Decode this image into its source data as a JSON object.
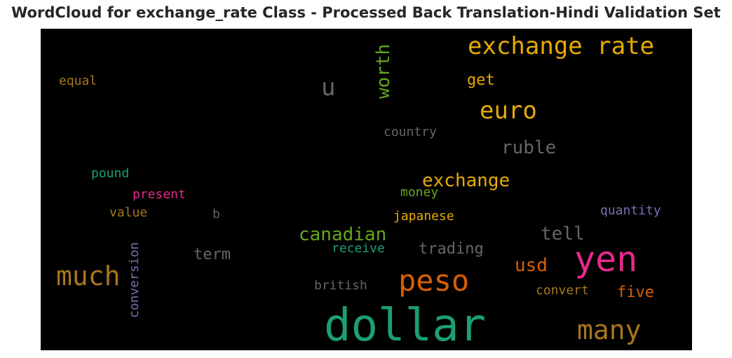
{
  "title": "WordCloud for exchange_rate Class - Processed Back Translation-Hindi Validation Set",
  "colors": {
    "background": "#000000",
    "teal": "#1b9e77",
    "orange": "#d95f02",
    "purple": "#7570b3",
    "pink": "#e7298a",
    "green": "#66a61e",
    "yellow": "#e6ab02",
    "brown": "#a6761d",
    "gray": "#666666"
  },
  "words": [
    {
      "text": "exchange rate",
      "color": "#e6ab02"
    },
    {
      "text": "u",
      "color": "#666666"
    },
    {
      "text": "worth",
      "color": "#66a61e"
    },
    {
      "text": "get",
      "color": "#e6ab02"
    },
    {
      "text": "equal",
      "color": "#a6761d"
    },
    {
      "text": "euro",
      "color": "#e6ab02"
    },
    {
      "text": "country",
      "color": "#666666"
    },
    {
      "text": "ruble",
      "color": "#666666"
    },
    {
      "text": "pound",
      "color": "#1b9e77"
    },
    {
      "text": "exchange",
      "color": "#e6ab02"
    },
    {
      "text": "present",
      "color": "#e7298a"
    },
    {
      "text": "money",
      "color": "#66a61e"
    },
    {
      "text": "value",
      "color": "#a6761d"
    },
    {
      "text": "b",
      "color": "#666666"
    },
    {
      "text": "japanese",
      "color": "#e6ab02"
    },
    {
      "text": "quantity",
      "color": "#7570b3"
    },
    {
      "text": "canadian",
      "color": "#66a61e"
    },
    {
      "text": "tell",
      "color": "#666666"
    },
    {
      "text": "conversion",
      "color": "#7570b3"
    },
    {
      "text": "receive",
      "color": "#1b9e77"
    },
    {
      "text": "trading",
      "color": "#666666"
    },
    {
      "text": "term",
      "color": "#666666"
    },
    {
      "text": "yen",
      "color": "#e7298a"
    },
    {
      "text": "much",
      "color": "#a6761d"
    },
    {
      "text": "usd",
      "color": "#d95f02"
    },
    {
      "text": "peso",
      "color": "#d95f02"
    },
    {
      "text": "british",
      "color": "#666666"
    },
    {
      "text": "convert",
      "color": "#a6761d"
    },
    {
      "text": "five",
      "color": "#d95f02"
    },
    {
      "text": "dollar",
      "color": "#1b9e77"
    },
    {
      "text": "many",
      "color": "#a6761d"
    }
  ]
}
